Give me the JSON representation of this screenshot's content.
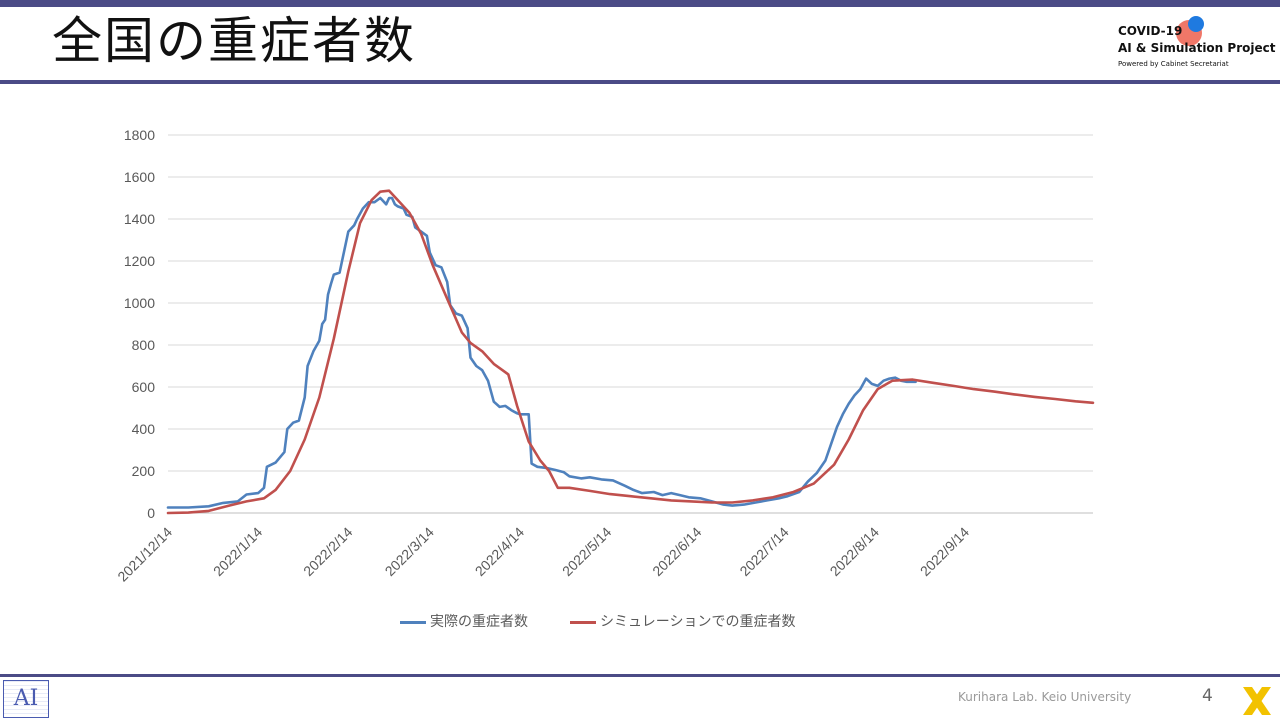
{
  "slide": {
    "title": "全国の重症者数",
    "logo": {
      "line1": "COVID-19",
      "line2": "AI & Simulation Project",
      "line3": "Powered by Cabinet Secretariat"
    },
    "footer": "Kurihara Lab. Keio University",
    "page_number": "4",
    "lab_logo_text": "AI",
    "colors": {
      "accent_bar": "#4b4b86",
      "series_actual": "#4f81bd",
      "series_sim": "#c0504d"
    }
  },
  "chart_data": {
    "type": "line",
    "ylim": [
      0,
      1800
    ],
    "yticks": [
      "0",
      "200",
      "400",
      "600",
      "800",
      "1000",
      "1200",
      "1400",
      "1600",
      "1800"
    ],
    "xlim": [
      "2021-12-14",
      "2022-10-28"
    ],
    "xticks": [
      {
        "label": "2021/12/14",
        "date": "2021-12-14"
      },
      {
        "label": "2022/1/14",
        "date": "2022-01-14"
      },
      {
        "label": "2022/2/14",
        "date": "2022-02-14"
      },
      {
        "label": "2022/3/14",
        "date": "2022-03-14"
      },
      {
        "label": "2022/4/14",
        "date": "2022-04-14"
      },
      {
        "label": "2022/5/14",
        "date": "2022-05-14"
      },
      {
        "label": "2022/6/14",
        "date": "2022-06-14"
      },
      {
        "label": "2022/7/14",
        "date": "2022-07-14"
      },
      {
        "label": "2022/8/14",
        "date": "2022-08-14"
      },
      {
        "label": "2022/9/14",
        "date": "2022-09-14"
      }
    ],
    "grid": "horizontal",
    "legend_position": "bottom",
    "series": [
      {
        "name": "実際の重症者数",
        "color": "#4f81bd",
        "points": [
          [
            "2021-12-14",
            26
          ],
          [
            "2021-12-21",
            26
          ],
          [
            "2021-12-28",
            32
          ],
          [
            "2022-01-02",
            48
          ],
          [
            "2022-01-07",
            55
          ],
          [
            "2022-01-10",
            88
          ],
          [
            "2022-01-14",
            95
          ],
          [
            "2022-01-16",
            120
          ],
          [
            "2022-01-17",
            220
          ],
          [
            "2022-01-20",
            240
          ],
          [
            "2022-01-23",
            290
          ],
          [
            "2022-01-24",
            400
          ],
          [
            "2022-01-26",
            430
          ],
          [
            "2022-01-28",
            440
          ],
          [
            "2022-01-30",
            550
          ],
          [
            "2022-01-31",
            700
          ],
          [
            "2022-02-02",
            770
          ],
          [
            "2022-02-04",
            820
          ],
          [
            "2022-02-05",
            900
          ],
          [
            "2022-02-06",
            920
          ],
          [
            "2022-02-07",
            1040
          ],
          [
            "2022-02-08",
            1090
          ],
          [
            "2022-02-09",
            1135
          ],
          [
            "2022-02-11",
            1145
          ],
          [
            "2022-02-12",
            1210
          ],
          [
            "2022-02-14",
            1340
          ],
          [
            "2022-02-16",
            1370
          ],
          [
            "2022-02-17",
            1400
          ],
          [
            "2022-02-19",
            1450
          ],
          [
            "2022-02-21",
            1480
          ],
          [
            "2022-02-23",
            1480
          ],
          [
            "2022-02-25",
            1500
          ],
          [
            "2022-02-27",
            1470
          ],
          [
            "2022-02-28",
            1500
          ],
          [
            "2022-03-01",
            1500
          ],
          [
            "2022-03-02",
            1470
          ],
          [
            "2022-03-03",
            1460
          ],
          [
            "2022-03-05",
            1450
          ],
          [
            "2022-03-06",
            1420
          ],
          [
            "2022-03-08",
            1410
          ],
          [
            "2022-03-09",
            1360
          ],
          [
            "2022-03-11",
            1340
          ],
          [
            "2022-03-13",
            1320
          ],
          [
            "2022-03-14",
            1240
          ],
          [
            "2022-03-16",
            1180
          ],
          [
            "2022-03-18",
            1170
          ],
          [
            "2022-03-20",
            1100
          ],
          [
            "2022-03-21",
            990
          ],
          [
            "2022-03-23",
            950
          ],
          [
            "2022-03-25",
            940
          ],
          [
            "2022-03-27",
            880
          ],
          [
            "2022-03-28",
            740
          ],
          [
            "2022-03-30",
            700
          ],
          [
            "2022-04-01",
            680
          ],
          [
            "2022-04-03",
            630
          ],
          [
            "2022-04-05",
            530
          ],
          [
            "2022-04-07",
            505
          ],
          [
            "2022-04-09",
            510
          ],
          [
            "2022-04-11",
            490
          ],
          [
            "2022-04-13",
            475
          ],
          [
            "2022-04-14",
            470
          ],
          [
            "2022-04-17",
            470
          ],
          [
            "2022-04-18",
            235
          ],
          [
            "2022-04-20",
            220
          ],
          [
            "2022-04-23",
            215
          ],
          [
            "2022-04-26",
            205
          ],
          [
            "2022-04-29",
            195
          ],
          [
            "2022-05-01",
            175
          ],
          [
            "2022-05-05",
            165
          ],
          [
            "2022-05-08",
            170
          ],
          [
            "2022-05-12",
            160
          ],
          [
            "2022-05-16",
            155
          ],
          [
            "2022-05-20",
            130
          ],
          [
            "2022-05-23",
            110
          ],
          [
            "2022-05-26",
            95
          ],
          [
            "2022-05-30",
            100
          ],
          [
            "2022-06-02",
            85
          ],
          [
            "2022-06-05",
            95
          ],
          [
            "2022-06-08",
            85
          ],
          [
            "2022-06-11",
            75
          ],
          [
            "2022-06-15",
            70
          ],
          [
            "2022-06-19",
            55
          ],
          [
            "2022-06-23",
            40
          ],
          [
            "2022-06-26",
            35
          ],
          [
            "2022-06-30",
            40
          ],
          [
            "2022-07-04",
            50
          ],
          [
            "2022-07-08",
            60
          ],
          [
            "2022-07-12",
            70
          ],
          [
            "2022-07-15",
            80
          ],
          [
            "2022-07-19",
            100
          ],
          [
            "2022-07-22",
            150
          ],
          [
            "2022-07-25",
            190
          ],
          [
            "2022-07-28",
            250
          ],
          [
            "2022-07-30",
            330
          ],
          [
            "2022-08-01",
            410
          ],
          [
            "2022-08-03",
            470
          ],
          [
            "2022-08-05",
            520
          ],
          [
            "2022-08-07",
            560
          ],
          [
            "2022-08-09",
            590
          ],
          [
            "2022-08-11",
            640
          ],
          [
            "2022-08-13",
            615
          ],
          [
            "2022-08-15",
            605
          ],
          [
            "2022-08-17",
            630
          ],
          [
            "2022-08-19",
            640
          ],
          [
            "2022-08-21",
            645
          ],
          [
            "2022-08-23",
            630
          ],
          [
            "2022-08-25",
            625
          ],
          [
            "2022-08-28",
            625
          ]
        ]
      },
      {
        "name": "シミュレーションでの重症者数",
        "color": "#c0504d",
        "points": [
          [
            "2021-12-14",
            0
          ],
          [
            "2021-12-21",
            2
          ],
          [
            "2021-12-28",
            10
          ],
          [
            "2022-01-04",
            35
          ],
          [
            "2022-01-10",
            55
          ],
          [
            "2022-01-16",
            70
          ],
          [
            "2022-01-20",
            110
          ],
          [
            "2022-01-25",
            200
          ],
          [
            "2022-01-30",
            350
          ],
          [
            "2022-02-04",
            550
          ],
          [
            "2022-02-09",
            830
          ],
          [
            "2022-02-14",
            1150
          ],
          [
            "2022-02-18",
            1380
          ],
          [
            "2022-02-22",
            1490
          ],
          [
            "2022-02-25",
            1530
          ],
          [
            "2022-02-28",
            1535
          ],
          [
            "2022-03-03",
            1490
          ],
          [
            "2022-03-07",
            1430
          ],
          [
            "2022-03-11",
            1330
          ],
          [
            "2022-03-15",
            1180
          ],
          [
            "2022-03-20",
            1020
          ],
          [
            "2022-03-25",
            860
          ],
          [
            "2022-03-28",
            810
          ],
          [
            "2022-04-01",
            770
          ],
          [
            "2022-04-05",
            710
          ],
          [
            "2022-04-08",
            680
          ],
          [
            "2022-04-10",
            660
          ],
          [
            "2022-04-13",
            510
          ],
          [
            "2022-04-17",
            340
          ],
          [
            "2022-04-21",
            250
          ],
          [
            "2022-04-24",
            200
          ],
          [
            "2022-04-27",
            120
          ],
          [
            "2022-05-01",
            120
          ],
          [
            "2022-05-08",
            105
          ],
          [
            "2022-05-15",
            90
          ],
          [
            "2022-05-22",
            80
          ],
          [
            "2022-05-29",
            70
          ],
          [
            "2022-06-05",
            60
          ],
          [
            "2022-06-12",
            55
          ],
          [
            "2022-06-19",
            50
          ],
          [
            "2022-06-26",
            50
          ],
          [
            "2022-07-03",
            60
          ],
          [
            "2022-07-10",
            75
          ],
          [
            "2022-07-17",
            100
          ],
          [
            "2022-07-24",
            140
          ],
          [
            "2022-07-31",
            230
          ],
          [
            "2022-08-05",
            350
          ],
          [
            "2022-08-10",
            490
          ],
          [
            "2022-08-15",
            590
          ],
          [
            "2022-08-20",
            630
          ],
          [
            "2022-08-27",
            635
          ],
          [
            "2022-09-03",
            620
          ],
          [
            "2022-09-10",
            605
          ],
          [
            "2022-09-17",
            590
          ],
          [
            "2022-09-24",
            578
          ],
          [
            "2022-10-01",
            565
          ],
          [
            "2022-10-08",
            553
          ],
          [
            "2022-10-15",
            543
          ],
          [
            "2022-10-22",
            532
          ],
          [
            "2022-10-28",
            525
          ]
        ]
      }
    ]
  }
}
